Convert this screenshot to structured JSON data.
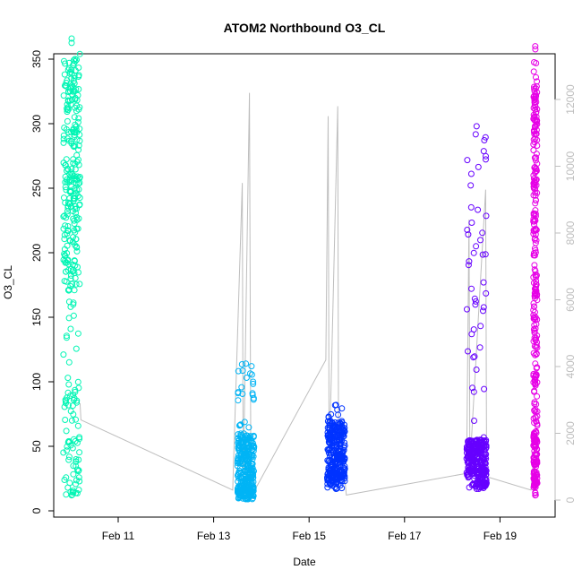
{
  "chart_data": {
    "type": "scatter",
    "title": "ATOM2 Northbound O3_CL",
    "xlabel": "Date",
    "ylabel": "O3_CL",
    "x_ticks": [
      "Feb 11",
      "Feb 13",
      "Feb 15",
      "Feb 17",
      "Feb 19"
    ],
    "x_tick_days": [
      11,
      13,
      15,
      17,
      19
    ],
    "xlim_days": [
      9.7,
      19.95
    ],
    "y_ticks": [
      0,
      50,
      100,
      150,
      200,
      250,
      300,
      350
    ],
    "ylim": [
      0,
      365
    ],
    "y2_ticks": [
      0,
      2000,
      4000,
      6000,
      8000,
      10000,
      12000
    ],
    "y2lim": [
      0,
      12500
    ],
    "grid": false,
    "colors": {
      "axis": "#000000",
      "secondary_axis": "#bebebe",
      "secondary_line": "#bebebe"
    },
    "series": [
      {
        "day_start": 9.85,
        "day_end": 10.2,
        "color": "#00f5b4",
        "ymin": 12,
        "ymax": 366,
        "bulk": [
          170,
          350
        ],
        "low": [
          12,
          100
        ]
      },
      {
        "day_start": 13.5,
        "day_end": 13.85,
        "color": "#00b4f5",
        "ymin": 9,
        "ymax": 114,
        "bulk": [
          12,
          60
        ],
        "low": [
          9,
          20
        ]
      },
      {
        "day_start": 15.38,
        "day_end": 15.75,
        "color": "#0033ff",
        "ymin": 17,
        "ymax": 82,
        "bulk": [
          25,
          70
        ],
        "low": [
          17,
          30
        ]
      },
      {
        "day_start": 18.3,
        "day_end": 18.72,
        "color": "#6600ff",
        "ymin": 17,
        "ymax": 298,
        "bulk": [
          28,
          55
        ],
        "low": [
          17,
          30
        ]
      },
      {
        "day_start": 19.7,
        "day_end": 19.78,
        "color": "#e600e6",
        "ymin": 12,
        "ymax": 360,
        "bulk": [
          20,
          330
        ],
        "low": [
          12,
          60
        ]
      }
    ],
    "secondary_series": {
      "name": "",
      "points": [
        [
          10.2,
          2900
        ],
        [
          10.22,
          2400
        ],
        [
          13.4,
          300
        ],
        [
          13.6,
          9500
        ],
        [
          13.62,
          300
        ],
        [
          13.75,
          12200
        ],
        [
          13.78,
          400
        ],
        [
          13.9,
          400
        ],
        [
          15.35,
          4200
        ],
        [
          15.4,
          11500
        ],
        [
          15.42,
          1000
        ],
        [
          15.6,
          11800
        ],
        [
          15.62,
          600
        ],
        [
          15.75,
          600
        ],
        [
          15.78,
          150
        ],
        [
          18.3,
          800
        ],
        [
          18.35,
          8400
        ],
        [
          18.37,
          1000
        ],
        [
          18.7,
          9300
        ],
        [
          18.72,
          700
        ],
        [
          19.65,
          300
        ],
        [
          19.7,
          1200
        ]
      ]
    }
  }
}
